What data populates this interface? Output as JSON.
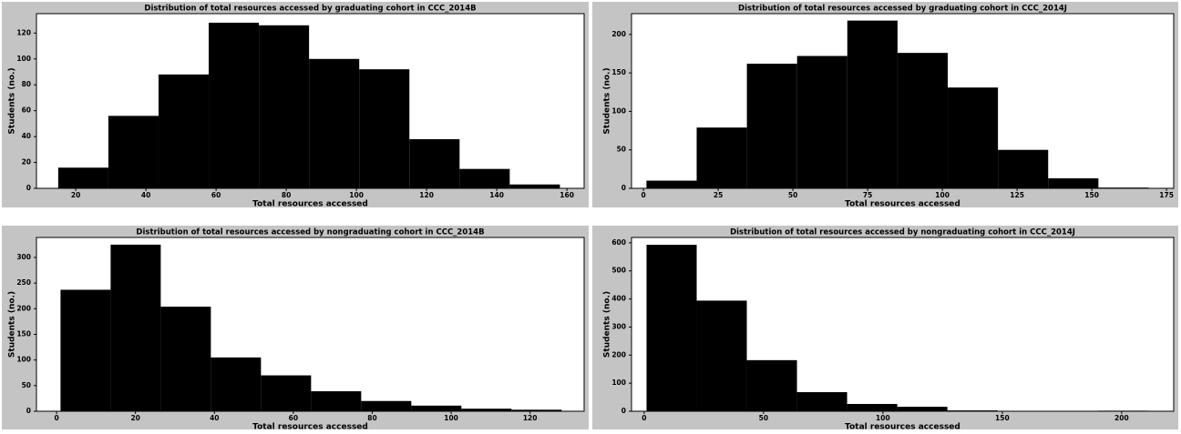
{
  "chart_data": [
    {
      "type": "histogram",
      "title": "Distribution of total resources accessed by graduating cohort in CCC_2014B",
      "xlabel": "Total resources accessed",
      "ylabel": "Students (no.)",
      "color": "#000000",
      "bins": [
        15,
        29.3,
        43.6,
        57.9,
        72.2,
        86.5,
        100.8,
        115.1,
        129.4,
        143.7,
        158
      ],
      "values": [
        16,
        56,
        88,
        128,
        126,
        100,
        92,
        38,
        15,
        3
      ],
      "xlim": [
        8.8,
        164.9
      ],
      "ylim": [
        0,
        135
      ],
      "xticks": [
        20,
        40,
        60,
        80,
        100,
        120,
        140,
        160
      ],
      "yticks": [
        0,
        20,
        40,
        60,
        80,
        100,
        120
      ]
    },
    {
      "type": "histogram",
      "title": "Distribution of total resources accessed by graduating cohort in CCC_2014J",
      "xlabel": "Total resources accessed",
      "ylabel": "Students (no.)",
      "color": "#000000",
      "bins": [
        1,
        17.8,
        34.6,
        51.4,
        68.2,
        85,
        101.8,
        118.6,
        135.4,
        152.2,
        169
      ],
      "values": [
        10,
        79,
        162,
        172,
        218,
        176,
        131,
        50,
        13,
        1
      ],
      "xlim": [
        -4,
        177.4
      ],
      "ylim": [
        0,
        227
      ],
      "xticks": [
        0,
        25,
        50,
        75,
        100,
        125,
        150,
        175
      ],
      "yticks": [
        0,
        50,
        100,
        150,
        200
      ]
    },
    {
      "type": "histogram",
      "title": "Distribution of total resources accessed by nongraduating cohort in CCC_2014B",
      "xlabel": "Total resources accessed",
      "ylabel": "Students (no.)",
      "color": "#000000",
      "bins": [
        1,
        13.7,
        26.4,
        39.1,
        51.8,
        64.5,
        77.2,
        89.9,
        102.6,
        115.3,
        128
      ],
      "values": [
        237,
        325,
        204,
        105,
        70,
        39,
        20,
        11,
        5,
        3
      ],
      "xlim": [
        -5.1,
        133.7
      ],
      "ylim": [
        0,
        339
      ],
      "xticks": [
        0,
        20,
        40,
        60,
        80,
        100,
        120
      ],
      "yticks": [
        0,
        50,
        100,
        150,
        200,
        250,
        300
      ]
    },
    {
      "type": "histogram",
      "title": "Distribution of total resources accessed by nongraduating cohort in CCC_2014J",
      "xlabel": "Total resources accessed",
      "ylabel": "Students (no.)",
      "color": "#000000",
      "bins": [
        1,
        22,
        43,
        64,
        85,
        106,
        127,
        148,
        169,
        190,
        211
      ],
      "values": [
        593,
        394,
        182,
        68,
        26,
        16,
        3,
        1,
        0,
        2
      ],
      "xlim": [
        -5.3,
        221.8
      ],
      "ylim": [
        0,
        619
      ],
      "xticks": [
        0,
        50,
        100,
        150,
        200
      ],
      "yticks": [
        0,
        100,
        200,
        300,
        400,
        500,
        600
      ]
    }
  ]
}
